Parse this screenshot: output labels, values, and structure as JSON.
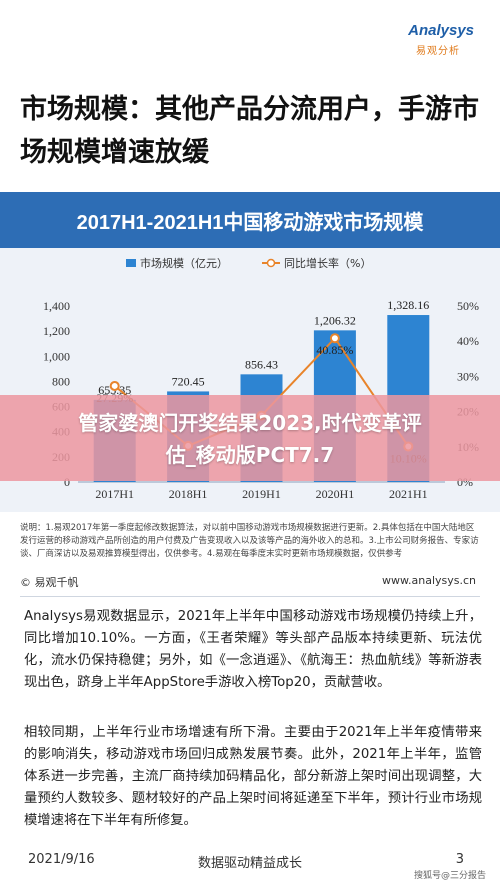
{
  "logo": {
    "name": "Analysys",
    "sub": "易观分析"
  },
  "page_title": "市场规模：其他产品分流用户，手游市场规模增速放缓",
  "chart_data": {
    "type": "bar",
    "title": "2017H1-2021H1中国移动游戏市场规模",
    "categories": [
      "2017H1",
      "2018H1",
      "2019H1",
      "2020H1",
      "2021H1"
    ],
    "series": [
      {
        "name": "市场规模（亿元）",
        "type": "bar",
        "axis": "left",
        "color": "#2d84d2",
        "values": [
          653.35,
          720.45,
          856.43,
          1206.32,
          1328.16
        ]
      },
      {
        "name": "同比增长率（%）",
        "type": "line",
        "axis": "right",
        "color": "#e8842b",
        "values": [
          27.29,
          10.27,
          18.87,
          40.85,
          10.1
        ]
      }
    ],
    "bar_labels": [
      "653.35",
      "720.45",
      "856.43",
      "1,206.32",
      "1,328.16"
    ],
    "line_labels": [
      "27.29%",
      "",
      "",
      "40.85%",
      "10.10%"
    ],
    "y_left": {
      "ylim": [
        0,
        1400
      ],
      "ticks": [
        "0",
        "200",
        "400",
        "600",
        "800",
        "1,000",
        "1,200",
        "1,400"
      ]
    },
    "y_right": {
      "ylim": [
        0,
        50
      ],
      "ticks": [
        "0%",
        "10%",
        "20%",
        "30%",
        "40%",
        "50%"
      ]
    },
    "legend": "top"
  },
  "banner": {
    "line1": "管家婆澳门开奖结果2023,时代变革评",
    "line2": "估_移动版PCT7.7"
  },
  "note": "说明：1.易观2017年第一季度起修改数据算法，对以前中国移动游戏市场规模数据进行更新。2.具体包括在中国大陆地区发行运营的移动游戏产品所创造的用户付费及广告变现收入以及该等产品的海外收入的总和。3.上市公司财务报告、专家访谈、厂商深访以及易观推算模型得出，仅供参考。4.易观在每季度末实时更新市场规模数据，仅供参考",
  "source_left": "© 易观千帆",
  "source_right": "www.analysys.cn",
  "para1": "Analysys易观数据显示，2021年上半年中国移动游戏市场规模仍持续上升，同比增加10.10%。一方面，《王者荣耀》等头部产品版本持续更新、玩法优化，流水仍保持稳健；另外，如《一念逍遥》、《航海王：热血航线》等新游表现出色，跻身上半年AppStore手游收入榜Top20，贡献营收。",
  "para2": "相较同期，上半年行业市场增速有所下滑。主要由于2021年上半年疫情带来的影响消失，移动游戏市场回归成熟发展节奏。此外，2021年上半年，监管体系进一步完善，主流厂商持续加码精品化，部分新游上架时间出现调整，大量预约人数较多、题材较好的产品上架时间将延递至下半年，预计行业市场规模增速将在下半年有所修复。",
  "footer": {
    "date": "2021/9/16",
    "center": "数据驱动精益成长",
    "page": "3",
    "watermark": "搜狐号@三分报告"
  }
}
